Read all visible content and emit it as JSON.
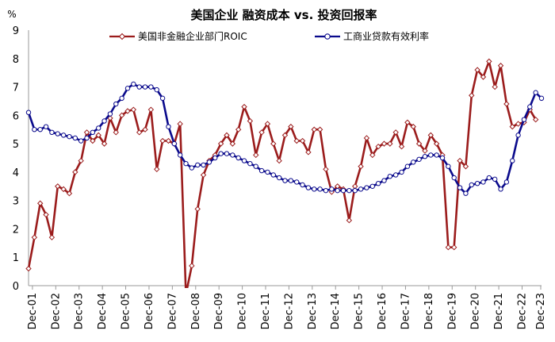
{
  "chart_data": {
    "type": "line",
    "title": "美国企业 融资成本 vs. 投资回报率",
    "ylabel": "%",
    "ylim": [
      0,
      9
    ],
    "yticks": [
      0,
      1,
      2,
      3,
      4,
      5,
      6,
      7,
      8,
      9
    ],
    "xlim": [
      2001.75,
      2023.75
    ],
    "xticks": [
      {
        "label": "Dec-01",
        "x": 2001.917
      },
      {
        "label": "Dec-02",
        "x": 2002.917
      },
      {
        "label": "Dec-03",
        "x": 2003.917
      },
      {
        "label": "Dec-04",
        "x": 2004.917
      },
      {
        "label": "Dec-05",
        "x": 2005.917
      },
      {
        "label": "Dec-06",
        "x": 2006.917
      },
      {
        "label": "Dec-07",
        "x": 2007.917
      },
      {
        "label": "Dec-08",
        "x": 2008.917
      },
      {
        "label": "Dec-09",
        "x": 2009.917
      },
      {
        "label": "Dec-10",
        "x": 2010.917
      },
      {
        "label": "Dec-11",
        "x": 2011.917
      },
      {
        "label": "Dec-12",
        "x": 2012.917
      },
      {
        "label": "Dec-13",
        "x": 2013.917
      },
      {
        "label": "Dec-14",
        "x": 2014.917
      },
      {
        "label": "Dec-15",
        "x": 2015.917
      },
      {
        "label": "Dec-16",
        "x": 2016.917
      },
      {
        "label": "Dec-17",
        "x": 2017.917
      },
      {
        "label": "Dec-18",
        "x": 2018.917
      },
      {
        "label": "Dec-19",
        "x": 2019.917
      },
      {
        "label": "Dec-20",
        "x": 2020.917
      },
      {
        "label": "Dec-21",
        "x": 2021.917
      },
      {
        "label": "Dec-22",
        "x": 2022.917
      },
      {
        "label": "Dec-23",
        "x": 2023.917
      }
    ],
    "legend_position": "top",
    "series": [
      {
        "name": "美国非金融企业部门ROIC",
        "color": "#9b1c1c",
        "marker": "diamond-open",
        "points": [
          [
            2001.75,
            0.6
          ],
          [
            2002.0,
            1.7
          ],
          [
            2002.25,
            2.9
          ],
          [
            2002.5,
            2.5
          ],
          [
            2002.75,
            1.7
          ],
          [
            2003.0,
            3.5
          ],
          [
            2003.25,
            3.4
          ],
          [
            2003.5,
            3.25
          ],
          [
            2003.75,
            4.0
          ],
          [
            2004.0,
            4.4
          ],
          [
            2004.25,
            5.4
          ],
          [
            2004.5,
            5.1
          ],
          [
            2004.75,
            5.3
          ],
          [
            2005.0,
            5.0
          ],
          [
            2005.25,
            5.9
          ],
          [
            2005.5,
            5.4
          ],
          [
            2005.75,
            6.0
          ],
          [
            2006.0,
            6.15
          ],
          [
            2006.25,
            6.2
          ],
          [
            2006.5,
            5.4
          ],
          [
            2006.75,
            5.5
          ],
          [
            2007.0,
            6.2
          ],
          [
            2007.25,
            4.1
          ],
          [
            2007.5,
            5.1
          ],
          [
            2007.75,
            5.1
          ],
          [
            2008.0,
            5.0
          ],
          [
            2008.25,
            5.7
          ],
          [
            2008.5,
            -0.3
          ],
          [
            2008.75,
            0.7
          ],
          [
            2009.0,
            2.7
          ],
          [
            2009.25,
            3.9
          ],
          [
            2009.5,
            4.4
          ],
          [
            2009.75,
            4.6
          ],
          [
            2010.0,
            5.0
          ],
          [
            2010.25,
            5.3
          ],
          [
            2010.5,
            5.0
          ],
          [
            2010.75,
            5.5
          ],
          [
            2011.0,
            6.3
          ],
          [
            2011.25,
            5.8
          ],
          [
            2011.5,
            4.6
          ],
          [
            2011.75,
            5.4
          ],
          [
            2012.0,
            5.7
          ],
          [
            2012.25,
            5.0
          ],
          [
            2012.5,
            4.4
          ],
          [
            2012.75,
            5.3
          ],
          [
            2013.0,
            5.6
          ],
          [
            2013.25,
            5.1
          ],
          [
            2013.5,
            5.1
          ],
          [
            2013.75,
            4.7
          ],
          [
            2014.0,
            5.5
          ],
          [
            2014.25,
            5.5
          ],
          [
            2014.5,
            4.1
          ],
          [
            2014.75,
            3.3
          ],
          [
            2015.0,
            3.5
          ],
          [
            2015.25,
            3.4
          ],
          [
            2015.5,
            2.3
          ],
          [
            2015.75,
            3.5
          ],
          [
            2016.0,
            4.2
          ],
          [
            2016.25,
            5.2
          ],
          [
            2016.5,
            4.6
          ],
          [
            2016.75,
            4.9
          ],
          [
            2017.0,
            5.0
          ],
          [
            2017.25,
            5.0
          ],
          [
            2017.5,
            5.4
          ],
          [
            2017.75,
            4.9
          ],
          [
            2018.0,
            5.75
          ],
          [
            2018.25,
            5.6
          ],
          [
            2018.5,
            5.0
          ],
          [
            2018.75,
            4.75
          ],
          [
            2019.0,
            5.3
          ],
          [
            2019.25,
            5.0
          ],
          [
            2019.5,
            4.6
          ],
          [
            2019.75,
            1.35
          ],
          [
            2020.0,
            1.35
          ],
          [
            2020.25,
            4.4
          ],
          [
            2020.5,
            4.2
          ],
          [
            2020.75,
            6.7
          ],
          [
            2021.0,
            7.6
          ],
          [
            2021.25,
            7.35
          ],
          [
            2021.5,
            7.9
          ],
          [
            2021.75,
            7.0
          ],
          [
            2022.0,
            7.75
          ],
          [
            2022.25,
            6.4
          ],
          [
            2022.5,
            5.6
          ],
          [
            2022.75,
            5.7
          ],
          [
            2023.0,
            5.75
          ],
          [
            2023.25,
            6.2
          ],
          [
            2023.5,
            5.85
          ]
        ]
      },
      {
        "name": "工商业贷款有效利率",
        "color": "#0a0a8c",
        "marker": "circle-open",
        "points": [
          [
            2001.75,
            6.1
          ],
          [
            2002.0,
            5.5
          ],
          [
            2002.25,
            5.5
          ],
          [
            2002.5,
            5.6
          ],
          [
            2002.75,
            5.4
          ],
          [
            2003.0,
            5.35
          ],
          [
            2003.25,
            5.3
          ],
          [
            2003.5,
            5.25
          ],
          [
            2003.75,
            5.2
          ],
          [
            2004.0,
            5.1
          ],
          [
            2004.25,
            5.2
          ],
          [
            2004.5,
            5.4
          ],
          [
            2004.75,
            5.55
          ],
          [
            2005.0,
            5.8
          ],
          [
            2005.25,
            6.05
          ],
          [
            2005.5,
            6.4
          ],
          [
            2005.75,
            6.6
          ],
          [
            2006.0,
            6.95
          ],
          [
            2006.25,
            7.1
          ],
          [
            2006.5,
            7.0
          ],
          [
            2006.75,
            7.0
          ],
          [
            2007.0,
            7.0
          ],
          [
            2007.25,
            6.9
          ],
          [
            2007.5,
            6.6
          ],
          [
            2007.75,
            5.6
          ],
          [
            2008.0,
            5.0
          ],
          [
            2008.25,
            4.6
          ],
          [
            2008.5,
            4.3
          ],
          [
            2008.75,
            4.15
          ],
          [
            2009.0,
            4.25
          ],
          [
            2009.25,
            4.25
          ],
          [
            2009.5,
            4.35
          ],
          [
            2009.75,
            4.5
          ],
          [
            2010.0,
            4.65
          ],
          [
            2010.25,
            4.65
          ],
          [
            2010.5,
            4.6
          ],
          [
            2010.75,
            4.5
          ],
          [
            2011.0,
            4.4
          ],
          [
            2011.25,
            4.3
          ],
          [
            2011.5,
            4.2
          ],
          [
            2011.75,
            4.05
          ],
          [
            2012.0,
            4.0
          ],
          [
            2012.25,
            3.9
          ],
          [
            2012.5,
            3.8
          ],
          [
            2012.75,
            3.7
          ],
          [
            2013.0,
            3.7
          ],
          [
            2013.25,
            3.65
          ],
          [
            2013.5,
            3.55
          ],
          [
            2013.75,
            3.45
          ],
          [
            2014.0,
            3.4
          ],
          [
            2014.25,
            3.4
          ],
          [
            2014.5,
            3.35
          ],
          [
            2014.75,
            3.4
          ],
          [
            2015.0,
            3.35
          ],
          [
            2015.25,
            3.35
          ],
          [
            2015.5,
            3.35
          ],
          [
            2015.75,
            3.35
          ],
          [
            2016.0,
            3.4
          ],
          [
            2016.25,
            3.45
          ],
          [
            2016.5,
            3.5
          ],
          [
            2016.75,
            3.6
          ],
          [
            2017.0,
            3.7
          ],
          [
            2017.25,
            3.85
          ],
          [
            2017.5,
            3.9
          ],
          [
            2017.75,
            4.0
          ],
          [
            2018.0,
            4.2
          ],
          [
            2018.25,
            4.35
          ],
          [
            2018.5,
            4.45
          ],
          [
            2018.75,
            4.55
          ],
          [
            2019.0,
            4.6
          ],
          [
            2019.25,
            4.6
          ],
          [
            2019.5,
            4.5
          ],
          [
            2019.75,
            4.2
          ],
          [
            2020.0,
            3.8
          ],
          [
            2020.25,
            3.45
          ],
          [
            2020.5,
            3.25
          ],
          [
            2020.75,
            3.55
          ],
          [
            2021.0,
            3.6
          ],
          [
            2021.25,
            3.65
          ],
          [
            2021.5,
            3.8
          ],
          [
            2021.75,
            3.75
          ],
          [
            2022.0,
            3.4
          ],
          [
            2022.25,
            3.65
          ],
          [
            2022.5,
            4.4
          ],
          [
            2022.75,
            5.3
          ],
          [
            2023.0,
            5.85
          ],
          [
            2023.25,
            6.3
          ],
          [
            2023.5,
            6.8
          ],
          [
            2023.75,
            6.6
          ]
        ]
      }
    ]
  }
}
